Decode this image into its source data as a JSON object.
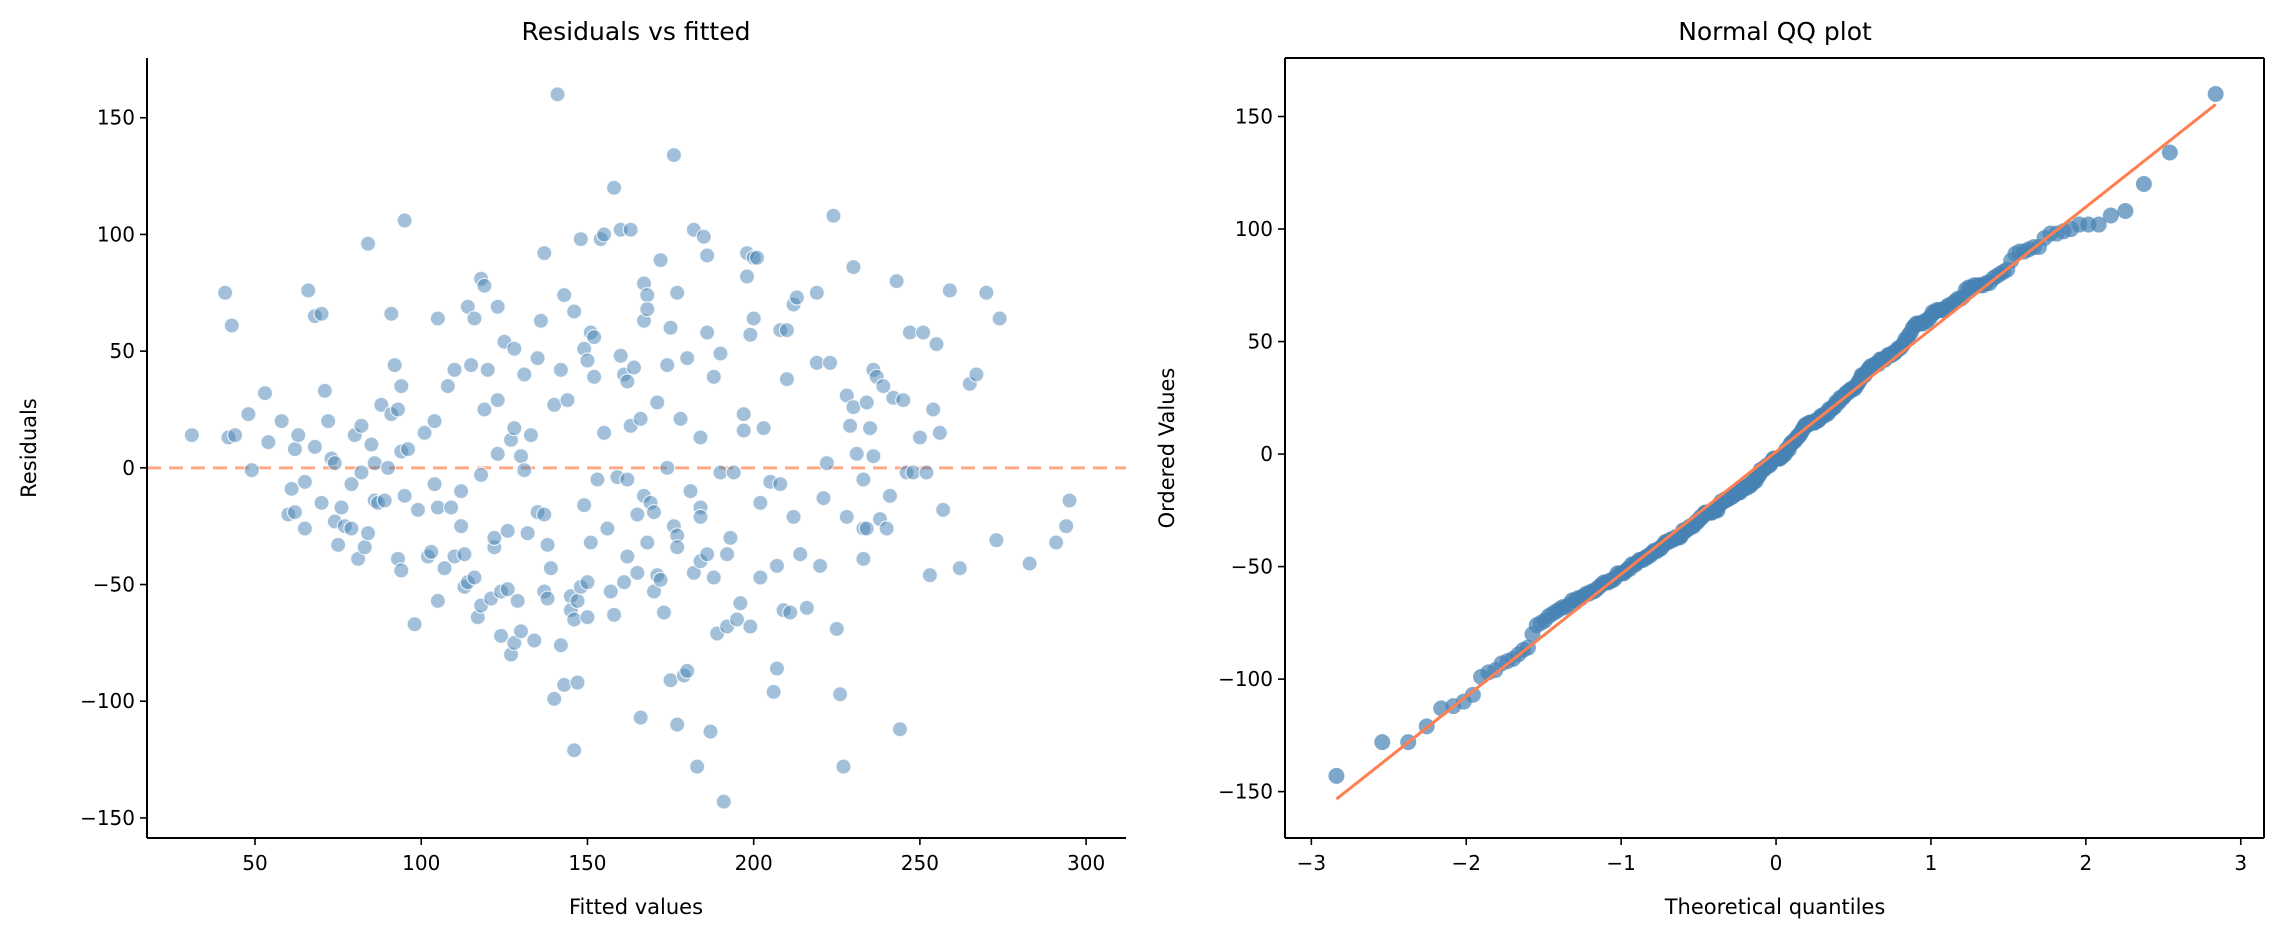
{
  "chart_data": [
    {
      "type": "scatter",
      "title": "Residuals vs fitted",
      "xlabel": "Fitted values",
      "ylabel": "Residuals",
      "xlim": [
        17.5,
        312
      ],
      "ylim": [
        -158.6,
        175.6
      ],
      "xticks": [
        50,
        100,
        150,
        200,
        250,
        300
      ],
      "yticks": [
        -150,
        -100,
        -50,
        0,
        50,
        100,
        150
      ],
      "reference_line": {
        "y": 0,
        "style": "dashed",
        "color": "#ff9f7a"
      },
      "marker_color": "#4682b4",
      "points": [
        [
          31,
          14
        ],
        [
          41,
          75
        ],
        [
          43,
          61
        ],
        [
          42,
          13
        ],
        [
          44,
          14
        ],
        [
          48,
          23
        ],
        [
          49,
          -1
        ],
        [
          53,
          32
        ],
        [
          54,
          11
        ],
        [
          58,
          20
        ],
        [
          60,
          -20
        ],
        [
          61,
          -9
        ],
        [
          62,
          -19
        ],
        [
          62,
          8
        ],
        [
          63,
          14
        ],
        [
          65,
          -6
        ],
        [
          65,
          -26
        ],
        [
          66,
          76
        ],
        [
          68,
          9
        ],
        [
          68,
          65
        ],
        [
          70,
          66
        ],
        [
          71,
          33
        ],
        [
          70,
          -15
        ],
        [
          72,
          20
        ],
        [
          73,
          4
        ],
        [
          74,
          2
        ],
        [
          74,
          -23
        ],
        [
          75,
          -33
        ],
        [
          76,
          -17
        ],
        [
          77,
          -25
        ],
        [
          79,
          -26
        ],
        [
          79,
          -7
        ],
        [
          80,
          14
        ],
        [
          81,
          -39
        ],
        [
          82,
          -2
        ],
        [
          82,
          18
        ],
        [
          83,
          -34
        ],
        [
          84,
          96
        ],
        [
          84,
          -28
        ],
        [
          85,
          10
        ],
        [
          86,
          -14
        ],
        [
          86,
          2
        ],
        [
          87,
          -15
        ],
        [
          88,
          27
        ],
        [
          89,
          -14
        ],
        [
          90,
          0
        ],
        [
          91,
          23
        ],
        [
          91,
          66
        ],
        [
          92,
          44
        ],
        [
          93,
          25
        ],
        [
          93,
          -39
        ],
        [
          94,
          -44
        ],
        [
          94,
          35
        ],
        [
          95,
          106
        ],
        [
          94,
          7
        ],
        [
          95,
          -12
        ],
        [
          96,
          8
        ],
        [
          98,
          -67
        ],
        [
          99,
          -18
        ],
        [
          101,
          15
        ],
        [
          102,
          -38
        ],
        [
          103,
          -36
        ],
        [
          104,
          -7
        ],
        [
          104,
          20
        ],
        [
          105,
          -57
        ],
        [
          105,
          -17
        ],
        [
          105,
          64
        ],
        [
          107,
          -43
        ],
        [
          108,
          35
        ],
        [
          109,
          -17
        ],
        [
          110,
          -38
        ],
        [
          110,
          42
        ],
        [
          112,
          -10
        ],
        [
          112,
          -25
        ],
        [
          113,
          -51
        ],
        [
          113,
          -37
        ],
        [
          114,
          69
        ],
        [
          114,
          -49
        ],
        [
          115,
          44
        ],
        [
          116,
          -47
        ],
        [
          116,
          64
        ],
        [
          117,
          -64
        ],
        [
          118,
          -3
        ],
        [
          118,
          -59
        ],
        [
          118,
          81
        ],
        [
          119,
          78
        ],
        [
          119,
          25
        ],
        [
          120,
          42
        ],
        [
          121,
          -56
        ],
        [
          122,
          -34
        ],
        [
          122,
          -30
        ],
        [
          123,
          6
        ],
        [
          123,
          29
        ],
        [
          123,
          69
        ],
        [
          124,
          -53
        ],
        [
          124,
          -72
        ],
        [
          125,
          54
        ],
        [
          126,
          -52
        ],
        [
          126,
          -27
        ],
        [
          127,
          -80
        ],
        [
          127,
          12
        ],
        [
          128,
          51
        ],
        [
          128,
          17
        ],
        [
          128,
          -75
        ],
        [
          129,
          -57
        ],
        [
          130,
          -70
        ],
        [
          130,
          5
        ],
        [
          131,
          40
        ],
        [
          131,
          -1
        ],
        [
          132,
          -28
        ],
        [
          133,
          14
        ],
        [
          134,
          -74
        ],
        [
          135,
          -19
        ],
        [
          135,
          47
        ],
        [
          136,
          63
        ],
        [
          137,
          -20
        ],
        [
          137,
          -53
        ],
        [
          137,
          92
        ],
        [
          138,
          -56
        ],
        [
          138,
          -33
        ],
        [
          139,
          -43
        ],
        [
          140,
          -99
        ],
        [
          140,
          27
        ],
        [
          141,
          160
        ],
        [
          142,
          42
        ],
        [
          142,
          -76
        ],
        [
          143,
          -93
        ],
        [
          143,
          74
        ],
        [
          144,
          29
        ],
        [
          145,
          -55
        ],
        [
          145,
          -61
        ],
        [
          146,
          67
        ],
        [
          146,
          -121
        ],
        [
          146,
          -65
        ],
        [
          147,
          -92
        ],
        [
          147,
          -57
        ],
        [
          148,
          -51
        ],
        [
          148,
          98
        ],
        [
          149,
          51
        ],
        [
          149,
          -16
        ],
        [
          150,
          -49
        ],
        [
          150,
          -64
        ],
        [
          150,
          46
        ],
        [
          151,
          -32
        ],
        [
          151,
          58
        ],
        [
          152,
          56
        ],
        [
          152,
          39
        ],
        [
          153,
          -5
        ],
        [
          154,
          98
        ],
        [
          155,
          100
        ],
        [
          155,
          15
        ],
        [
          156,
          -26
        ],
        [
          157,
          -53
        ],
        [
          158,
          -63
        ],
        [
          158,
          120
        ],
        [
          159,
          -4
        ],
        [
          160,
          102
        ],
        [
          160,
          48
        ],
        [
          161,
          40
        ],
        [
          161,
          -49
        ],
        [
          162,
          -5
        ],
        [
          162,
          -38
        ],
        [
          162,
          37
        ],
        [
          163,
          102
        ],
        [
          163,
          18
        ],
        [
          164,
          43
        ],
        [
          165,
          -45
        ],
        [
          165,
          -20
        ],
        [
          166,
          -107
        ],
        [
          166,
          21
        ],
        [
          167,
          -12
        ],
        [
          167,
          63
        ],
        [
          167,
          79
        ],
        [
          168,
          74
        ],
        [
          168,
          -32
        ],
        [
          168,
          68
        ],
        [
          169,
          -15
        ],
        [
          170,
          -19
        ],
        [
          170,
          -53
        ],
        [
          171,
          -46
        ],
        [
          171,
          28
        ],
        [
          172,
          -48
        ],
        [
          172,
          89
        ],
        [
          173,
          -62
        ],
        [
          174,
          0
        ],
        [
          174,
          44
        ],
        [
          175,
          -91
        ],
        [
          175,
          60
        ],
        [
          176,
          -25
        ],
        [
          176,
          134
        ],
        [
          177,
          -110
        ],
        [
          177,
          -29
        ],
        [
          177,
          -34
        ],
        [
          177,
          75
        ],
        [
          178,
          21
        ],
        [
          179,
          -89
        ],
        [
          180,
          -87
        ],
        [
          180,
          47
        ],
        [
          181,
          -10
        ],
        [
          182,
          -45
        ],
        [
          182,
          102
        ],
        [
          183,
          -128
        ],
        [
          184,
          -17
        ],
        [
          184,
          13
        ],
        [
          184,
          -40
        ],
        [
          184,
          -21
        ],
        [
          185,
          99
        ],
        [
          186,
          -37
        ],
        [
          186,
          58
        ],
        [
          186,
          91
        ],
        [
          187,
          -113
        ],
        [
          188,
          39
        ],
        [
          188,
          -47
        ],
        [
          189,
          -71
        ],
        [
          190,
          -2
        ],
        [
          190,
          49
        ],
        [
          191,
          -143
        ],
        [
          192,
          -68
        ],
        [
          192,
          -37
        ],
        [
          193,
          -30
        ],
        [
          194,
          -2
        ],
        [
          195,
          -65
        ],
        [
          196,
          -58
        ],
        [
          197,
          16
        ],
        [
          197,
          23
        ],
        [
          198,
          82
        ],
        [
          198,
          92
        ],
        [
          199,
          -68
        ],
        [
          199,
          57
        ],
        [
          200,
          64
        ],
        [
          200,
          90
        ],
        [
          201,
          90
        ],
        [
          202,
          -47
        ],
        [
          202,
          -15
        ],
        [
          203,
          17
        ],
        [
          205,
          -6
        ],
        [
          206,
          -96
        ],
        [
          207,
          -42
        ],
        [
          207,
          -86
        ],
        [
          208,
          -7
        ],
        [
          208,
          59
        ],
        [
          209,
          -61
        ],
        [
          210,
          38
        ],
        [
          210,
          59
        ],
        [
          211,
          -62
        ],
        [
          212,
          -21
        ],
        [
          212,
          70
        ],
        [
          213,
          73
        ],
        [
          214,
          -37
        ],
        [
          216,
          -60
        ],
        [
          219,
          45
        ],
        [
          219,
          75
        ],
        [
          220,
          -42
        ],
        [
          221,
          -13
        ],
        [
          222,
          2
        ],
        [
          223,
          45
        ],
        [
          224,
          108
        ],
        [
          225,
          -69
        ],
        [
          226,
          -97
        ],
        [
          227,
          -128
        ],
        [
          228,
          -21
        ],
        [
          228,
          31
        ],
        [
          229,
          18
        ],
        [
          230,
          86
        ],
        [
          230,
          26
        ],
        [
          231,
          6
        ],
        [
          233,
          -39
        ],
        [
          233,
          -26
        ],
        [
          233,
          -5
        ],
        [
          234,
          28
        ],
        [
          234,
          -26
        ],
        [
          235,
          17
        ],
        [
          236,
          5
        ],
        [
          236,
          42
        ],
        [
          237,
          39
        ],
        [
          238,
          -22
        ],
        [
          239,
          35
        ],
        [
          240,
          -26
        ],
        [
          241,
          -12
        ],
        [
          242,
          30
        ],
        [
          243,
          80
        ],
        [
          244,
          -112
        ],
        [
          245,
          29
        ],
        [
          246,
          -2
        ],
        [
          247,
          58
        ],
        [
          248,
          -2
        ],
        [
          250,
          13
        ],
        [
          251,
          58
        ],
        [
          252,
          -2
        ],
        [
          253,
          -46
        ],
        [
          254,
          25
        ],
        [
          255,
          53
        ],
        [
          256,
          15
        ],
        [
          257,
          -18
        ],
        [
          259,
          76
        ],
        [
          262,
          -43
        ],
        [
          265,
          36
        ],
        [
          267,
          40
        ],
        [
          270,
          75
        ],
        [
          273,
          -31
        ],
        [
          274,
          64
        ],
        [
          283,
          -41
        ],
        [
          291,
          -32
        ],
        [
          294,
          -25
        ],
        [
          295,
          -14
        ]
      ]
    },
    {
      "type": "scatter",
      "title": "Normal QQ plot",
      "xlabel": "Theoretical quantiles",
      "ylabel": "Ordered Values",
      "xlim": [
        -3.17,
        3.15
      ],
      "ylim": [
        -170.6,
        176
      ],
      "xticks": [
        -3,
        -2,
        -1,
        0,
        1,
        2,
        3
      ],
      "yticks": [
        -150,
        -100,
        -50,
        0,
        50,
        100,
        150
      ],
      "source": "residuals of the first panel, sorted, against normal theoretical quantiles",
      "marker_color": "#4682b4",
      "fit_line_color": "#ff7f50"
    }
  ]
}
